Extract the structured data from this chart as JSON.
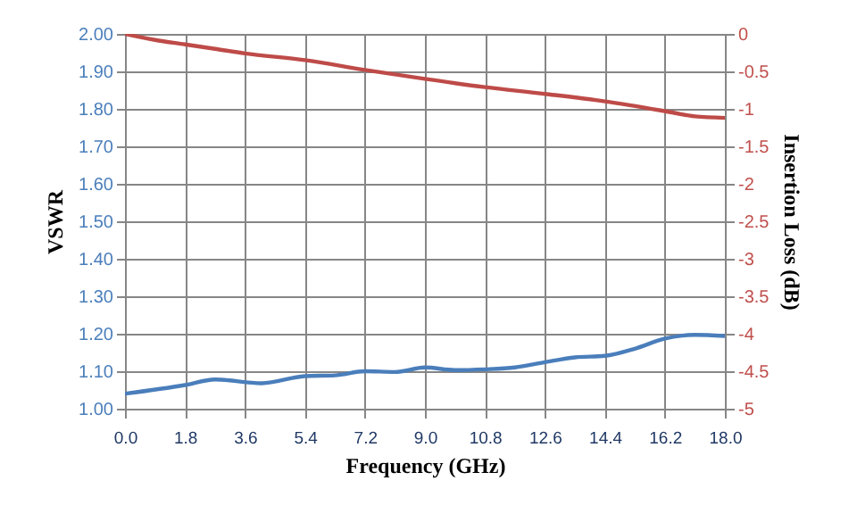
{
  "chart_data": {
    "type": "line",
    "xlabel": "Frequency (GHz)",
    "ylabel": "VSWR",
    "y2label": "Insertion Loss (dB)",
    "xlim": [
      0,
      18
    ],
    "xticks": [
      {
        "value": 0,
        "label": "0.0"
      },
      {
        "value": 1.8,
        "label": "1.8"
      },
      {
        "value": 3.6,
        "label": "3.6"
      },
      {
        "value": 5.4,
        "label": "5.4"
      },
      {
        "value": 7.2,
        "label": "7.2"
      },
      {
        "value": 9,
        "label": "9.0"
      },
      {
        "value": 10.8,
        "label": "10.8"
      },
      {
        "value": 12.6,
        "label": "12.6"
      },
      {
        "value": 14.4,
        "label": "14.4"
      },
      {
        "value": 16.2,
        "label": "16.2"
      },
      {
        "value": 18,
        "label": "18.0"
      }
    ],
    "ylim": [
      1,
      2
    ],
    "yticks": [
      {
        "value": 1,
        "label": "1.00"
      },
      {
        "value": 1.1,
        "label": "1.10"
      },
      {
        "value": 1.2,
        "label": "1.20"
      },
      {
        "value": 1.3,
        "label": "1.30"
      },
      {
        "value": 1.4,
        "label": "1.40"
      },
      {
        "value": 1.5,
        "label": "1.50"
      },
      {
        "value": 1.6,
        "label": "1.60"
      },
      {
        "value": 1.7,
        "label": "1.70"
      },
      {
        "value": 1.8,
        "label": "1.80"
      },
      {
        "value": 1.9,
        "label": "1.90"
      },
      {
        "value": 2,
        "label": "2.00"
      }
    ],
    "y2lim": [
      -5,
      0
    ],
    "y2ticks": [
      0,
      -0.5,
      -1,
      -1.5,
      -2,
      -2.5,
      -3,
      -3.5,
      -4,
      -4.5,
      -5
    ],
    "grid": true,
    "marker": "none",
    "line_style": "solid",
    "series": [
      {
        "color": "#4a7ebb",
        "x": [
          0,
          1.8,
          2.7,
          4.1,
          5.4,
          6.3,
          7.2,
          8.1,
          9,
          9.9,
          10.8,
          11.7,
          12.6,
          13.5,
          14.4,
          15.3,
          16.2,
          17.1,
          18
        ],
        "values": [
          1.04,
          1.063,
          1.078,
          1.068,
          1.087,
          1.089,
          1.1,
          1.098,
          1.11,
          1.103,
          1.105,
          1.11,
          1.124,
          1.137,
          1.141,
          1.16,
          1.187,
          1.197,
          1.194
        ]
      },
      {
        "color": "#be4b48",
        "axis": "y2",
        "x": [
          0,
          0.9,
          1.8,
          2.7,
          3.6,
          5.4,
          7.2,
          9,
          10.8,
          12.6,
          14.4,
          16.2,
          17.1,
          18
        ],
        "values": [
          0,
          -0.08,
          -0.14,
          -0.2,
          -0.26,
          -0.35,
          -0.48,
          -0.6,
          -0.71,
          -0.8,
          -0.9,
          -1.03,
          -1.1,
          -1.12
        ]
      }
    ]
  }
}
